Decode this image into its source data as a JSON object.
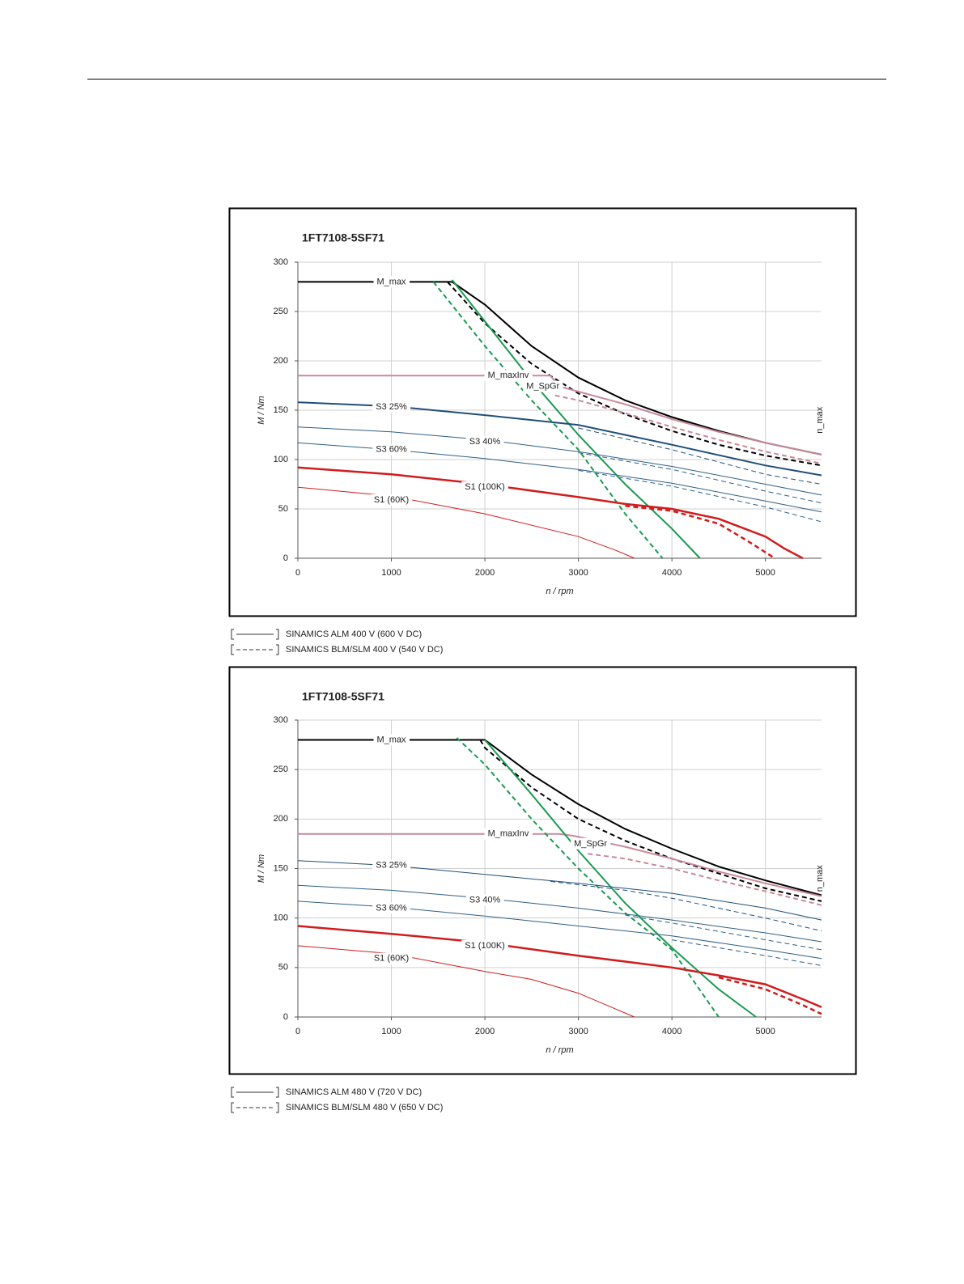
{
  "chart_data": [
    {
      "type": "line",
      "title": "1FT7108-5SF71",
      "xlabel": "n / rpm",
      "ylabel": "M / Nm",
      "annotation": "n_max",
      "xlim": [
        0,
        5600
      ],
      "ylim": [
        0,
        300
      ],
      "xticks": [
        0,
        1000,
        2000,
        3000,
        4000,
        5000
      ],
      "yticks": [
        0,
        50,
        100,
        150,
        200,
        250,
        300
      ],
      "grid": true,
      "legend": [
        {
          "label": "SINAMICS ALM 400 V (600 V DC)",
          "dash": false
        },
        {
          "label": "SINAMICS BLM/SLM 400 V (540 V DC)",
          "dash": true
        }
      ],
      "series": [
        {
          "name": "M_max",
          "color": "#000000",
          "dash": false,
          "width": 2,
          "x": [
            0,
            1650,
            2000,
            2500,
            3000,
            3500,
            4000,
            4500,
            5000,
            5600
          ],
          "values": [
            280,
            280,
            257,
            215,
            183,
            160,
            143,
            129,
            117,
            105
          ]
        },
        {
          "color": "#000000",
          "dash": true,
          "width": 2,
          "x": [
            1600,
            2000,
            2500,
            3000,
            3500,
            4000,
            4500,
            5000,
            5600
          ],
          "values": [
            280,
            238,
            197,
            167,
            146,
            129,
            115,
            104,
            94
          ]
        },
        {
          "name": "M_maxInv",
          "color": "#c8899a",
          "dash": false,
          "width": 2,
          "x": [
            0,
            2700,
            2800,
            3500,
            4000,
            4500,
            5000,
            5600
          ],
          "values": [
            185,
            185,
            174,
            156,
            141,
            128,
            117,
            105
          ]
        },
        {
          "color": "#c8899a",
          "dash": true,
          "width": 2,
          "x": [
            2750,
            3000,
            3500,
            4000,
            4500,
            5000,
            5600
          ],
          "values": [
            165,
            160,
            147,
            133,
            120,
            108,
            96
          ]
        },
        {
          "name": "M_SpGr",
          "color": "#1a9a50",
          "dash": false,
          "width": 2,
          "x": [
            1650,
            2000,
            2500,
            3000,
            3500,
            4000,
            4300
          ],
          "values": [
            282,
            240,
            180,
            125,
            75,
            30,
            0
          ]
        },
        {
          "color": "#1a9a50",
          "dash": true,
          "width": 2,
          "x": [
            1450,
            2000,
            2500,
            3000,
            3500,
            3900
          ],
          "values": [
            280,
            215,
            160,
            110,
            45,
            0
          ]
        },
        {
          "name": "S3 25%",
          "color": "#1f4e79",
          "dash": false,
          "width": 2,
          "x": [
            0,
            1000,
            2000,
            3000,
            4000,
            5000,
            5600
          ],
          "values": [
            158,
            154,
            145,
            135,
            115,
            94,
            84
          ]
        },
        {
          "color": "#1f4e79",
          "dash": true,
          "width": 1,
          "x": [
            3000,
            4000,
            5000,
            5600
          ],
          "values": [
            132,
            110,
            85,
            75
          ]
        },
        {
          "name": "S3 40%",
          "color": "#2e5f86",
          "dash": false,
          "width": 1,
          "x": [
            0,
            1000,
            2000,
            3000,
            4000,
            5000,
            5600
          ],
          "values": [
            133,
            128,
            120,
            108,
            93,
            75,
            64
          ]
        },
        {
          "color": "#2e5f86",
          "dash": true,
          "width": 1,
          "x": [
            3000,
            4000,
            5000,
            5600
          ],
          "values": [
            107,
            90,
            68,
            56
          ]
        },
        {
          "name": "S3 60%",
          "color": "#2e5f86",
          "dash": false,
          "width": 1,
          "x": [
            0,
            1000,
            2000,
            3000,
            4000,
            5000,
            5600
          ],
          "values": [
            117,
            110,
            101,
            90,
            76,
            58,
            47
          ]
        },
        {
          "color": "#2e5f86",
          "dash": true,
          "width": 1,
          "x": [
            3000,
            4000,
            5000,
            5600
          ],
          "values": [
            89,
            73,
            52,
            37
          ]
        },
        {
          "name": "S1 (100K)",
          "color": "#d01c1c",
          "dash": false,
          "width": 2.5,
          "x": [
            0,
            1000,
            2000,
            3000,
            3500,
            4000,
            4500,
            5000,
            5200,
            5400
          ],
          "values": [
            92,
            85,
            75,
            62,
            55,
            50,
            40,
            22,
            10,
            0
          ]
        },
        {
          "color": "#d01c1c",
          "dash": true,
          "width": 2.5,
          "x": [
            3500,
            4000,
            4500,
            4800,
            5100
          ],
          "values": [
            53,
            48,
            35,
            18,
            0
          ]
        },
        {
          "name": "S1 (60K)",
          "color": "#d01c1c",
          "dash": false,
          "width": 1,
          "x": [
            0,
            1000,
            2000,
            3000,
            3400,
            3600
          ],
          "values": [
            72,
            63,
            45,
            22,
            8,
            0
          ]
        }
      ]
    },
    {
      "type": "line",
      "title": "1FT7108-5SF71",
      "xlabel": "n / rpm",
      "ylabel": "M / Nm",
      "annotation": "n_max",
      "xlim": [
        0,
        5600
      ],
      "ylim": [
        0,
        300
      ],
      "xticks": [
        0,
        1000,
        2000,
        3000,
        4000,
        5000
      ],
      "yticks": [
        0,
        50,
        100,
        150,
        200,
        250,
        300
      ],
      "grid": true,
      "legend": [
        {
          "label": "SINAMICS ALM 480 V (720 V DC)",
          "dash": false
        },
        {
          "label": "SINAMICS BLM/SLM 480 V (650 V DC)",
          "dash": true
        }
      ],
      "series": [
        {
          "name": "M_max",
          "color": "#000000",
          "dash": false,
          "width": 2,
          "x": [
            0,
            2000,
            2500,
            3000,
            3500,
            4000,
            4500,
            5000,
            5600
          ],
          "values": [
            280,
            280,
            245,
            215,
            190,
            170,
            152,
            138,
            123
          ]
        },
        {
          "color": "#000000",
          "dash": true,
          "width": 2,
          "x": [
            1950,
            2000,
            2500,
            3000,
            3500,
            4000,
            4500,
            5000,
            5600
          ],
          "values": [
            280,
            272,
            232,
            200,
            178,
            160,
            145,
            130,
            117
          ]
        },
        {
          "name": "M_maxInv",
          "color": "#c8899a",
          "dash": false,
          "width": 2,
          "x": [
            0,
            2800,
            2950,
            3500,
            4000,
            4500,
            5000,
            5600
          ],
          "values": [
            185,
            185,
            183,
            172,
            160,
            147,
            135,
            122
          ]
        },
        {
          "color": "#c8899a",
          "dash": true,
          "width": 2,
          "x": [
            3100,
            3500,
            4000,
            4500,
            5000,
            5600
          ],
          "values": [
            165,
            160,
            150,
            138,
            127,
            113
          ]
        },
        {
          "name": "M_SpGr",
          "color": "#1a9a50",
          "dash": false,
          "width": 2,
          "x": [
            2000,
            2500,
            3000,
            3500,
            4000,
            4500,
            4900
          ],
          "values": [
            280,
            225,
            168,
            115,
            70,
            28,
            0
          ]
        },
        {
          "color": "#1a9a50",
          "dash": true,
          "width": 2,
          "x": [
            1700,
            2000,
            2500,
            3000,
            3500,
            4000,
            4500
          ],
          "values": [
            282,
            255,
            200,
            150,
            105,
            68,
            0
          ]
        },
        {
          "name": "S3 25%",
          "color": "#1f4e79",
          "dash": false,
          "width": 1,
          "x": [
            0,
            1000,
            2000,
            3000,
            4000,
            5000,
            5600
          ],
          "values": [
            158,
            153,
            144,
            135,
            125,
            110,
            98
          ]
        },
        {
          "color": "#1f4e79",
          "dash": true,
          "width": 1,
          "x": [
            2700,
            3500,
            4000,
            5000,
            5600
          ],
          "values": [
            137,
            128,
            120,
            100,
            87
          ]
        },
        {
          "name": "S3 40%",
          "color": "#2e5f86",
          "dash": false,
          "width": 1,
          "x": [
            0,
            1000,
            2000,
            3000,
            4000,
            5000,
            5600
          ],
          "values": [
            133,
            128,
            120,
            110,
            98,
            85,
            76
          ]
        },
        {
          "color": "#2e5f86",
          "dash": true,
          "width": 1,
          "x": [
            3500,
            4000,
            5000,
            5600
          ],
          "values": [
            103,
            95,
            78,
            68
          ]
        },
        {
          "name": "S3 60%",
          "color": "#2e5f86",
          "dash": false,
          "width": 1,
          "x": [
            0,
            1000,
            2000,
            3000,
            4000,
            5000,
            5600
          ],
          "values": [
            117,
            111,
            102,
            92,
            82,
            68,
            59
          ]
        },
        {
          "color": "#2e5f86",
          "dash": true,
          "width": 1,
          "x": [
            4000,
            5000,
            5600
          ],
          "values": [
            78,
            62,
            52
          ]
        },
        {
          "name": "S1 (100K)",
          "color": "#d01c1c",
          "dash": false,
          "width": 2.5,
          "x": [
            0,
            1000,
            2000,
            3000,
            4000,
            4500,
            5000,
            5400,
            5600
          ],
          "values": [
            92,
            84,
            75,
            62,
            50,
            42,
            33,
            18,
            10
          ]
        },
        {
          "color": "#d01c1c",
          "dash": true,
          "width": 2.5,
          "x": [
            4500,
            5000,
            5400,
            5600
          ],
          "values": [
            40,
            28,
            12,
            3
          ]
        },
        {
          "name": "S1 (60K)",
          "color": "#d01c1c",
          "dash": false,
          "width": 1,
          "x": [
            0,
            1000,
            2000,
            2500,
            3000,
            3400,
            3600
          ],
          "values": [
            72,
            64,
            46,
            38,
            24,
            8,
            0
          ]
        }
      ]
    }
  ]
}
